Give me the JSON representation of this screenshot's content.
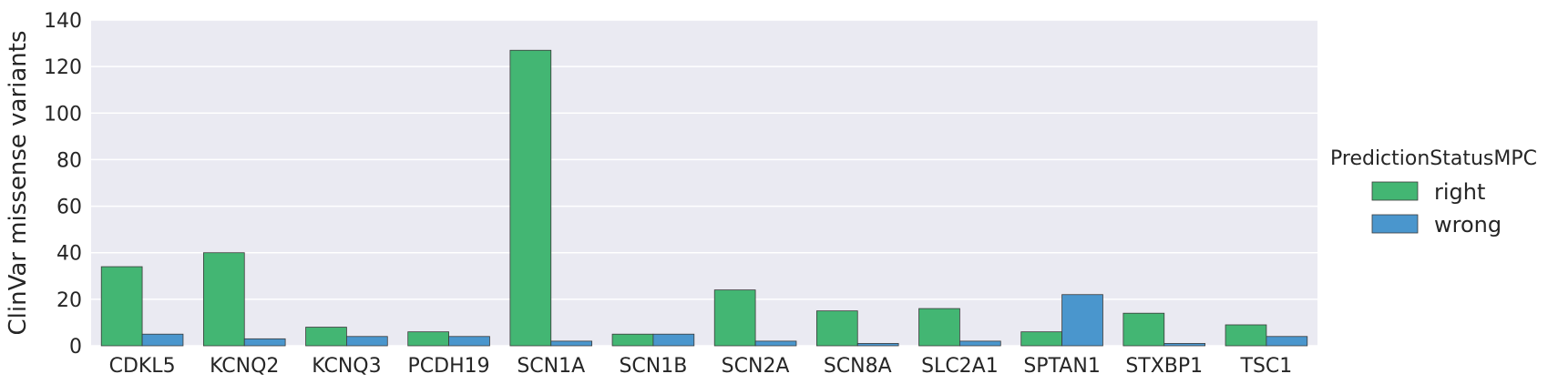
{
  "chart_data": {
    "type": "bar",
    "ylabel": "ClinVar missense variants",
    "xlabel": "",
    "ylim": [
      0,
      140
    ],
    "yticks": [
      0,
      20,
      40,
      60,
      80,
      100,
      120,
      140
    ],
    "grid": true,
    "legend": {
      "title": "PredictionStatusMPC",
      "placement": "right"
    },
    "categories": [
      "CDKL5",
      "KCNQ2",
      "KCNQ3",
      "PCDH19",
      "SCN1A",
      "SCN1B",
      "SCN2A",
      "SCN8A",
      "SLC2A1",
      "SPTAN1",
      "STXBP1",
      "TSC1"
    ],
    "series": [
      {
        "name": "right",
        "color": "#43b673",
        "values": [
          34,
          40,
          8,
          6,
          127,
          5,
          24,
          15,
          16,
          6,
          14,
          9
        ]
      },
      {
        "name": "wrong",
        "color": "#4a96cd",
        "values": [
          5,
          3,
          4,
          4,
          2,
          5,
          2,
          1,
          2,
          22,
          1,
          4
        ]
      }
    ]
  }
}
